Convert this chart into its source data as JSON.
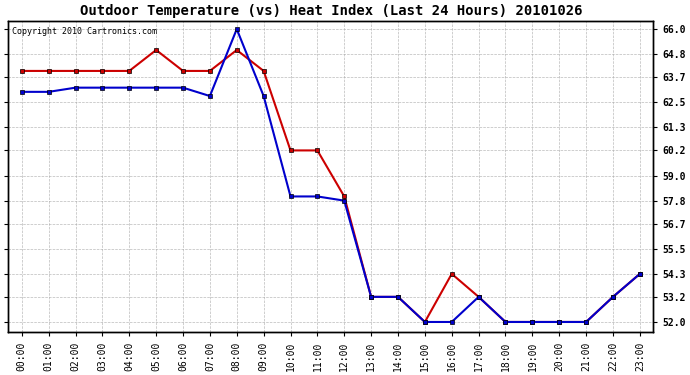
{
  "title": "Outdoor Temperature (vs) Heat Index (Last 24 Hours) 20101026",
  "copyright_text": "Copyright 2010 Cartronics.com",
  "x_labels": [
    "00:00",
    "01:00",
    "02:00",
    "03:00",
    "04:00",
    "05:00",
    "06:00",
    "07:00",
    "08:00",
    "09:00",
    "10:00",
    "11:00",
    "12:00",
    "13:00",
    "14:00",
    "15:00",
    "16:00",
    "17:00",
    "18:00",
    "19:00",
    "20:00",
    "21:00",
    "22:00",
    "23:00"
  ],
  "temp_data": [
    64.0,
    64.0,
    64.0,
    64.0,
    64.0,
    65.0,
    64.0,
    64.0,
    65.0,
    64.0,
    60.2,
    60.2,
    58.0,
    53.2,
    53.2,
    52.0,
    54.3,
    53.2,
    52.0,
    52.0,
    52.0,
    52.0,
    53.2,
    54.3
  ],
  "heat_data": [
    63.0,
    63.0,
    63.2,
    63.2,
    63.2,
    63.2,
    63.2,
    62.8,
    66.0,
    62.8,
    58.0,
    58.0,
    57.8,
    53.2,
    53.2,
    52.0,
    52.0,
    53.2,
    52.0,
    52.0,
    52.0,
    52.0,
    53.2,
    54.3
  ],
  "temp_color": "#cc0000",
  "heat_color": "#0000cc",
  "ylim_min": 51.5,
  "ylim_max": 66.4,
  "yticks": [
    52.0,
    53.2,
    54.3,
    55.5,
    56.7,
    57.8,
    59.0,
    60.2,
    61.3,
    62.5,
    63.7,
    64.8,
    66.0
  ],
  "background_color": "#ffffff",
  "grid_color": "#aaaaaa",
  "title_fontsize": 10,
  "tick_fontsize": 7,
  "copyright_fontsize": 6
}
